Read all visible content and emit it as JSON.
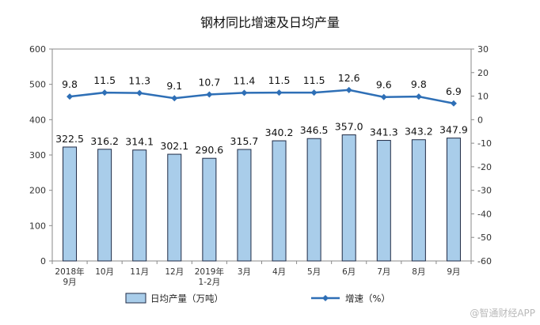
{
  "chart_data": {
    "type": "bar",
    "title": "钢材同比增速及日均产量",
    "categories": [
      [
        "2018年",
        "9月"
      ],
      [
        "10月"
      ],
      [
        "11月"
      ],
      [
        "12月"
      ],
      [
        "2019年",
        "1-2月"
      ],
      [
        "3月"
      ],
      [
        "4月"
      ],
      [
        "5月"
      ],
      [
        "6月"
      ],
      [
        "7月"
      ],
      [
        "8月"
      ],
      [
        "9月"
      ]
    ],
    "y_left": {
      "min": 0,
      "max": 600,
      "step": 100
    },
    "y_right": {
      "min": -60,
      "max": 30,
      "step": 10
    },
    "series": [
      {
        "name": "日均产量（万吨）",
        "type": "bar",
        "axis": "left",
        "values": [
          322.5,
          316.2,
          314.1,
          302.1,
          290.6,
          315.7,
          340.2,
          346.5,
          357.0,
          341.3,
          343.2,
          347.9
        ],
        "labels": [
          "322.5",
          "316.2",
          "314.1",
          "302.1",
          "290.6",
          "315.7",
          "340.2",
          "346.5",
          "357.0",
          "341.3",
          "343.2",
          "347.9"
        ],
        "color": "#a9cdea",
        "stroke": "#1f2a44"
      },
      {
        "name": "增速（%）",
        "type": "line",
        "axis": "right",
        "values": [
          9.8,
          11.5,
          11.3,
          9.1,
          10.7,
          11.4,
          11.5,
          11.5,
          12.6,
          9.6,
          9.8,
          6.9
        ],
        "labels": [
          "9.8",
          "11.5",
          "11.3",
          "9.1",
          "10.7",
          "11.4",
          "11.5",
          "11.5",
          "12.6",
          "9.6",
          "9.8",
          "6.9"
        ],
        "color": "#2e6fb6"
      }
    ],
    "legend_position": "bottom",
    "grid": false
  },
  "watermark": "@智通财经APP"
}
